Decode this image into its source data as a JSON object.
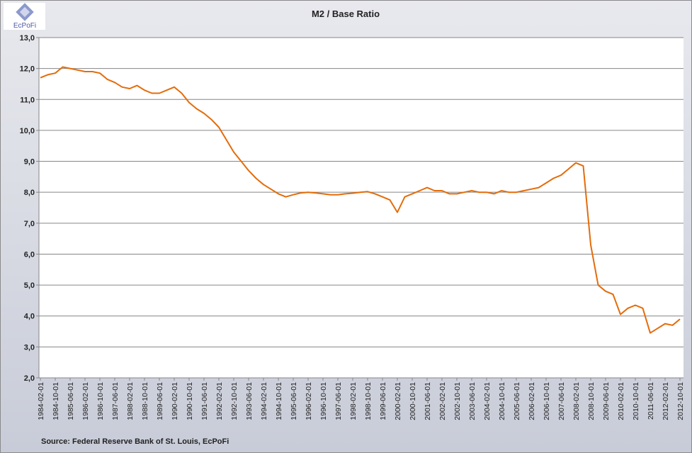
{
  "logo": "EcPoFi",
  "chart_data": {
    "type": "line",
    "title": "M2 / Base Ratio",
    "source": "Source: Federal Reserve Bank of St. Louis, EcPoFi",
    "color": "#e46c0a",
    "grid": true,
    "x": [
      "1984-02-01",
      "1984-06-01",
      "1984-10-01",
      "1985-02-01",
      "1985-06-01",
      "1985-10-01",
      "1986-02-01",
      "1986-06-01",
      "1986-10-01",
      "1987-02-01",
      "1987-06-01",
      "1987-10-01",
      "1988-02-01",
      "1988-06-01",
      "1988-10-01",
      "1989-02-01",
      "1989-06-01",
      "1989-10-01",
      "1990-02-01",
      "1990-06-01",
      "1990-10-01",
      "1991-02-01",
      "1991-06-01",
      "1991-10-01",
      "1992-02-01",
      "1992-06-01",
      "1992-10-01",
      "1993-02-01",
      "1993-06-01",
      "1993-10-01",
      "1994-02-01",
      "1994-06-01",
      "1994-10-01",
      "1995-02-01",
      "1995-06-01",
      "1995-10-01",
      "1996-02-01",
      "1996-06-01",
      "1996-10-01",
      "1997-02-01",
      "1997-06-01",
      "1997-10-01",
      "1998-02-01",
      "1998-06-01",
      "1998-10-01",
      "1999-02-01",
      "1999-06-01",
      "1999-10-01",
      "2000-02-01",
      "2000-06-01",
      "2000-10-01",
      "2001-02-01",
      "2001-06-01",
      "2001-10-01",
      "2002-02-01",
      "2002-06-01",
      "2002-10-01",
      "2003-02-01",
      "2003-06-01",
      "2003-10-01",
      "2004-02-01",
      "2004-06-01",
      "2004-10-01",
      "2005-02-01",
      "2005-06-01",
      "2005-10-01",
      "2006-02-01",
      "2006-06-01",
      "2006-10-01",
      "2007-02-01",
      "2007-06-01",
      "2007-10-01",
      "2008-02-01",
      "2008-06-01",
      "2008-10-01",
      "2009-02-01",
      "2009-06-01",
      "2009-10-01",
      "2010-02-01",
      "2010-06-01",
      "2010-10-01",
      "2011-02-01",
      "2011-06-01",
      "2011-10-01",
      "2012-02-01",
      "2012-06-01",
      "2012-10-01"
    ],
    "values": [
      11.7,
      11.8,
      11.85,
      12.05,
      12.0,
      11.95,
      11.9,
      11.9,
      11.85,
      11.65,
      11.55,
      11.4,
      11.35,
      11.45,
      11.3,
      11.2,
      11.2,
      11.3,
      11.4,
      11.2,
      10.9,
      10.7,
      10.55,
      10.35,
      10.1,
      9.7,
      9.3,
      9.0,
      8.7,
      8.45,
      8.25,
      8.1,
      7.95,
      7.85,
      7.92,
      7.98,
      8.0,
      7.98,
      7.95,
      7.92,
      7.92,
      7.95,
      7.97,
      8.0,
      8.02,
      7.95,
      7.85,
      7.75,
      7.35,
      7.85,
      7.95,
      8.05,
      8.15,
      8.05,
      8.05,
      7.95,
      7.95,
      8.0,
      8.05,
      8.0,
      8.0,
      7.95,
      8.05,
      8.0,
      8.0,
      8.05,
      8.1,
      8.15,
      8.3,
      8.45,
      8.55,
      8.75,
      8.95,
      8.85,
      6.3,
      5.0,
      4.8,
      4.7,
      4.05,
      4.25,
      4.35,
      4.25,
      3.45,
      3.6,
      3.75,
      3.7,
      3.9
    ],
    "xlim": [
      "1984-02-01",
      "2012-10-01"
    ],
    "xticks": [
      "1984-02-01",
      "1984-10-01",
      "1985-06-01",
      "1986-02-01",
      "1986-10-01",
      "1987-06-01",
      "1988-02-01",
      "1988-10-01",
      "1989-06-01",
      "1990-02-01",
      "1990-10-01",
      "1991-06-01",
      "1992-02-01",
      "1992-10-01",
      "1993-06-01",
      "1994-02-01",
      "1994-10-01",
      "1995-06-01",
      "1996-02-01",
      "1996-10-01",
      "1997-06-01",
      "1998-02-01",
      "1998-10-01",
      "1999-06-01",
      "2000-02-01",
      "2000-10-01",
      "2001-06-01",
      "2002-02-01",
      "2002-10-01",
      "2003-06-01",
      "2004-02-01",
      "2004-10-01",
      "2005-06-01",
      "2006-02-01",
      "2006-10-01",
      "2007-06-01",
      "2008-02-01",
      "2008-10-01",
      "2009-06-01",
      "2010-02-01",
      "2010-10-01",
      "2011-06-01",
      "2012-02-01",
      "2012-10-01"
    ],
    "ylim": [
      2,
      13
    ],
    "yticks": [
      {
        "value": 2,
        "label": "2,0"
      },
      {
        "value": 3,
        "label": "3,0"
      },
      {
        "value": 4,
        "label": "4,0"
      },
      {
        "value": 5,
        "label": "5,0"
      },
      {
        "value": 6,
        "label": "6,0"
      },
      {
        "value": 7,
        "label": "7,0"
      },
      {
        "value": 8,
        "label": "8,0"
      },
      {
        "value": 9,
        "label": "9,0"
      },
      {
        "value": 10,
        "label": "10,0"
      },
      {
        "value": 11,
        "label": "11,0"
      },
      {
        "value": 12,
        "label": "12,0"
      },
      {
        "value": 13,
        "label": "13,0"
      }
    ]
  }
}
